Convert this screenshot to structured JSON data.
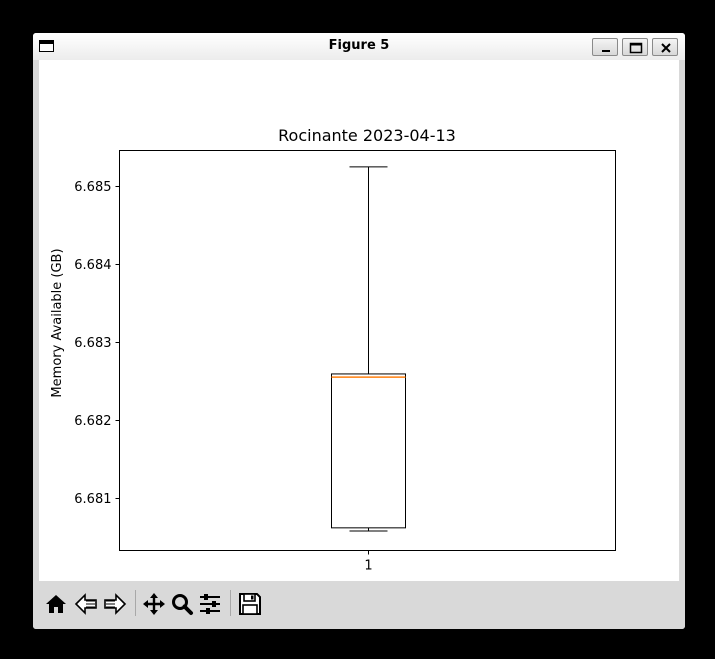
{
  "window": {
    "title": "Figure 5"
  },
  "chart_data": {
    "type": "box",
    "title": "Rocinante 2023-04-13",
    "xlabel": "",
    "ylabel": "Memory Available (GB)",
    "categories": [
      "1"
    ],
    "ylim": [
      6.68033,
      6.68545
    ],
    "yticks": [
      6.681,
      6.682,
      6.683,
      6.684,
      6.685
    ],
    "ytick_labels": [
      "6.681",
      "6.682",
      "6.683",
      "6.684",
      "6.685"
    ],
    "boxes": [
      {
        "name": "1",
        "whisker_low": 6.68058,
        "q1": 6.68062,
        "median": 6.68255,
        "q3": 6.68259,
        "whisker_high": 6.68524
      }
    ],
    "grid": false,
    "colors": {
      "median": "#ff7f0e",
      "box": "#000000"
    }
  }
}
